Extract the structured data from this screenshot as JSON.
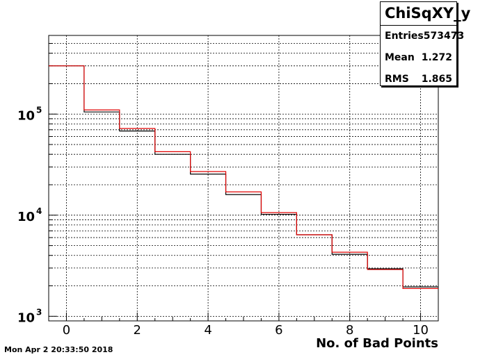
{
  "timestamp": "Mon Apr  2 20:33:50 2018",
  "stats": {
    "title": "ChiSqXY_y",
    "rows": [
      {
        "label": "Entries",
        "value": "573473"
      },
      {
        "label": "Mean",
        "value": "1.272"
      },
      {
        "label": "RMS",
        "value": "1.865"
      }
    ]
  },
  "chart_data": {
    "type": "line",
    "title": "",
    "xlabel": "No. of Bad Points",
    "ylabel": "",
    "xlim": [
      -0.5,
      10.5
    ],
    "ylim": [
      900,
      600000
    ],
    "ylog": true,
    "grid": true,
    "xticks": [
      0,
      2,
      4,
      6,
      8,
      10
    ],
    "yticks": [
      {
        "value": 1000,
        "base": "10",
        "exp": "3"
      },
      {
        "value": 10000,
        "base": "10",
        "exp": "4"
      },
      {
        "value": 100000,
        "base": "10",
        "exp": "5"
      }
    ],
    "bins": [
      0,
      1,
      2,
      3,
      4,
      5,
      6,
      7,
      8,
      9,
      10
    ],
    "series": [
      {
        "color": "#000000",
        "values": [
          300000,
          105000,
          68000,
          40000,
          25500,
          16000,
          10200,
          6400,
          4100,
          2950,
          1950
        ]
      },
      {
        "color": "#e00000",
        "values": [
          300000,
          110000,
          72000,
          42500,
          27000,
          17000,
          10600,
          6400,
          4300,
          2900,
          1880
        ]
      }
    ]
  }
}
